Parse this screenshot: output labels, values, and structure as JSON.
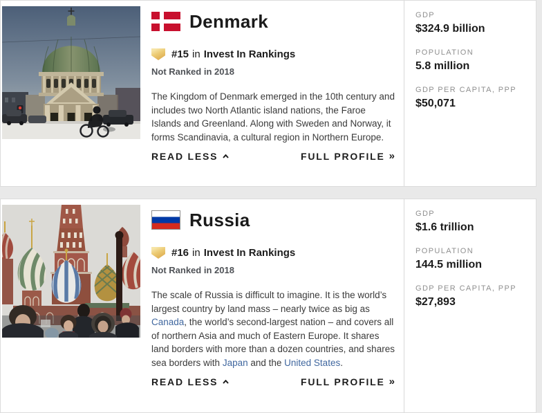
{
  "colors": {
    "page_background": "#e9e9e9",
    "card_background": "#ffffff",
    "link_blue": "#40679f",
    "stat_label_gray": "#8f8f8f",
    "badge_gold": "#e7bc5e",
    "denmark_flag_red": "#c8102e",
    "russia_flag_blue": "#0039a6",
    "russia_flag_red": "#d52b1e"
  },
  "icons": {
    "rank_badge": "gold-ribbon-badge",
    "read_less": "chevron-up",
    "full_profile_arrow": "double-angle-right"
  },
  "cards": [
    {
      "country": "Denmark",
      "flag": "denmark-flag",
      "photo": "frederiks-church-copenhagen-snow",
      "rank_number": "#15",
      "rank_connector": "in",
      "rank_list": "Invest In Rankings",
      "previous_rank": "Not Ranked in 2018",
      "description_segments": [
        {
          "text": "The Kingdom of Denmark emerged in the 10th century and includes two North Atlantic island nations, the Faroe Islands and Greenland. Along with Sweden and Norway, it forms Scandinavia, a cultural region in Northern Europe.",
          "link": false
        }
      ],
      "read_less_label": "READ LESS",
      "full_profile_label": "FULL PROFILE",
      "full_profile_arrow": "»",
      "stats": [
        {
          "label": "GDP",
          "value": "$324.9 billion"
        },
        {
          "label": "POPULATION",
          "value": "5.8 million"
        },
        {
          "label": "GDP PER CAPITA, PPP",
          "value": "$50,071"
        }
      ]
    },
    {
      "country": "Russia",
      "flag": "russia-flag",
      "photo": "st-basils-cathedral-red-square-crowd",
      "rank_number": "#16",
      "rank_connector": "in",
      "rank_list": "Invest In Rankings",
      "previous_rank": "Not Ranked in 2018",
      "description_segments": [
        {
          "text": "The scale of Russia is difficult to imagine. It is the world’s largest country by land mass – nearly twice as big as ",
          "link": false
        },
        {
          "text": "Canada",
          "link": true
        },
        {
          "text": ", the world’s second-largest nation – and covers all of northern Asia and much of Eastern Europe. It shares land borders with more than a dozen countries, and shares sea borders with ",
          "link": false
        },
        {
          "text": "Japan",
          "link": true
        },
        {
          "text": " and the ",
          "link": false
        },
        {
          "text": "United States",
          "link": true
        },
        {
          "text": ".",
          "link": false
        }
      ],
      "read_less_label": "READ LESS",
      "full_profile_label": "FULL PROFILE",
      "full_profile_arrow": "»",
      "stats": [
        {
          "label": "GDP",
          "value": "$1.6 trillion"
        },
        {
          "label": "POPULATION",
          "value": "144.5 million"
        },
        {
          "label": "GDP PER CAPITA, PPP",
          "value": "$27,893"
        }
      ]
    }
  ]
}
